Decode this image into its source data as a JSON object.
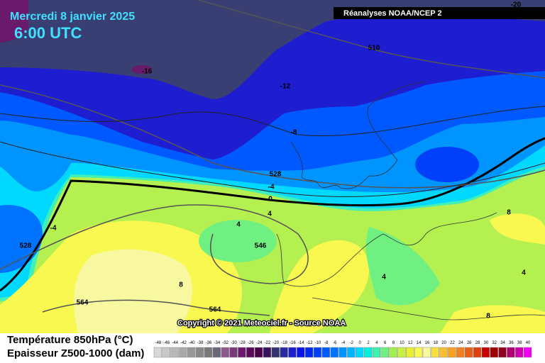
{
  "header": {
    "title": "Mercredi 8 janvier 2025",
    "time": "6:00 UTC",
    "source_badge": "Réanalyses NOAA/NCEP 2",
    "corner_label": -20
  },
  "map": {
    "contour_labels": [
      510,
      -16,
      -12,
      -8,
      528,
      -4,
      0,
      4,
      4,
      546,
      -4,
      528,
      8,
      564,
      564,
      8,
      4,
      4,
      8
    ]
  },
  "copyright": "Copyright © 2021 Meteociel.fr - Source NOAA",
  "legend": {
    "title": "Température 850hPa (°C)",
    "subtitle": "Epaisseur Z500-1000 (dam)",
    "labels": [
      -48,
      -46,
      -44,
      -42,
      -40,
      -38,
      -36,
      -34,
      -32,
      -30,
      -28,
      -26,
      -24,
      -22,
      -20,
      -18,
      -16,
      -14,
      -12,
      -10,
      -8,
      -6,
      -4,
      -2,
      0,
      2,
      4,
      6,
      8,
      10,
      12,
      14,
      16,
      18,
      20,
      22,
      24,
      26,
      28,
      30,
      32,
      34,
      36,
      38,
      40
    ],
    "colors": [
      "#d8d8d8",
      "#c8c8c8",
      "#b8b8b8",
      "#a8a8a8",
      "#989898",
      "#888888",
      "#787878",
      "#686878",
      "#8c5a8c",
      "#7a3a7a",
      "#6a1a6a",
      "#5a0a5a",
      "#4a004a",
      "#3a1060",
      "#33336e",
      "#2a2aa0",
      "#1e1ed0",
      "#0a14e8",
      "#0028f0",
      "#0040f8",
      "#0058ff",
      "#0074ff",
      "#0094ff",
      "#00b4ff",
      "#00d8ff",
      "#00f0e0",
      "#40f0b0",
      "#70f080",
      "#a0f050",
      "#c8f040",
      "#e8f030",
      "#f8f850",
      "#f8f8a0",
      "#f8e040",
      "#f8c030",
      "#f8a020",
      "#f08020",
      "#e86018",
      "#e04010",
      "#c80000",
      "#a00000",
      "#900020",
      "#b00070",
      "#d000b0",
      "#f000f0"
    ]
  }
}
